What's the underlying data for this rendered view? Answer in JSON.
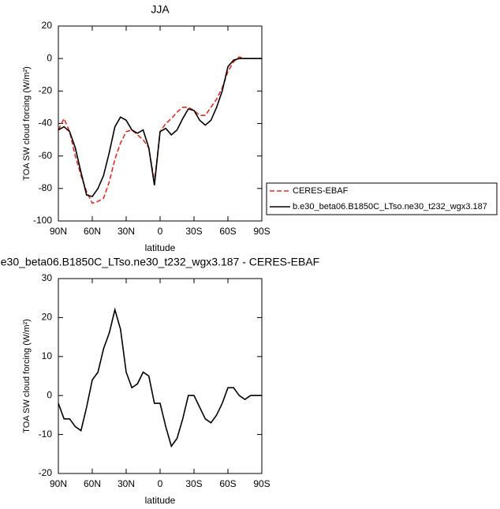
{
  "chart_data": [
    {
      "type": "line",
      "title": "JJA",
      "xlabel": "latitude",
      "ylabel": "TOA SW cloud forcing (W/m²)",
      "x": [
        90,
        85,
        80,
        75,
        70,
        65,
        60,
        55,
        50,
        45,
        40,
        35,
        30,
        25,
        20,
        15,
        10,
        5,
        0,
        -5,
        -10,
        -15,
        -20,
        -25,
        -30,
        -35,
        -40,
        -45,
        -50,
        -55,
        -60,
        -65,
        -70,
        -75,
        -80,
        -85,
        -90
      ],
      "series": [
        {
          "name": "CERES-EBAF",
          "color": "#e8281e",
          "dashed": true,
          "values": [
            -44,
            -37,
            -45,
            -60,
            -72,
            -82,
            -89,
            -88,
            -86,
            -76,
            -62,
            -52,
            -45,
            -44,
            -47,
            -50,
            -55,
            -76,
            -45,
            -40,
            -37,
            -33,
            -30,
            -30,
            -32,
            -35,
            -35,
            -30,
            -25,
            -18,
            -8,
            -2,
            1,
            0,
            0,
            0,
            0
          ]
        },
        {
          "name": "b.e30_beta06.B1850C_LTso.ne30_t232_wgx3.187",
          "color": "#000000",
          "dashed": false,
          "values": [
            -44,
            -42,
            -45,
            -55,
            -70,
            -84,
            -85,
            -80,
            -72,
            -58,
            -42,
            -36,
            -38,
            -44,
            -46,
            -44,
            -55,
            -78,
            -45,
            -43,
            -47,
            -44,
            -37,
            -31,
            -32,
            -38,
            -41,
            -38,
            -30,
            -20,
            -5,
            -1,
            0,
            0,
            0,
            0,
            0
          ]
        }
      ],
      "xlim": [
        90,
        -90
      ],
      "xticks": [
        {
          "value": 90,
          "label": "90N"
        },
        {
          "value": 60,
          "label": "60N"
        },
        {
          "value": 30,
          "label": "30N"
        },
        0,
        {
          "value": -30,
          "label": "30S"
        },
        {
          "value": -60,
          "label": "60S"
        },
        {
          "value": -90,
          "label": "90S"
        }
      ],
      "ylim": [
        -100,
        20
      ],
      "yticks": [
        -100,
        -80,
        -60,
        -40,
        -20,
        0,
        20
      ],
      "legend": "right"
    },
    {
      "type": "line",
      "title": "e30_beta06.B1850C_LTso.ne30_t232_wgx3.187 - CERES-EBAF",
      "xlabel": "latitude",
      "ylabel": "TOA SW cloud forcing (W/m²)",
      "x": [
        90,
        85,
        80,
        75,
        70,
        65,
        60,
        55,
        50,
        45,
        40,
        35,
        30,
        25,
        20,
        15,
        10,
        5,
        0,
        -5,
        -10,
        -15,
        -20,
        -25,
        -30,
        -35,
        -40,
        -45,
        -50,
        -55,
        -60,
        -65,
        -70,
        -75,
        -80,
        -85,
        -90
      ],
      "series": [
        {
          "color": "#000000",
          "dashed": false,
          "values": [
            -2,
            -6,
            -6,
            -8,
            -9,
            -3,
            4,
            6,
            12,
            16,
            22,
            17,
            6,
            2,
            3,
            6,
            5,
            -2,
            -2,
            -8,
            -13,
            -11,
            -6,
            0,
            0,
            -3,
            -6,
            -7,
            -5,
            -2,
            2,
            2,
            0,
            -1,
            0,
            0,
            0
          ]
        }
      ],
      "xlim": [
        90,
        -90
      ],
      "xticks": [
        {
          "value": 90,
          "label": "90N"
        },
        {
          "value": 60,
          "label": "60N"
        },
        {
          "value": 30,
          "label": "30N"
        },
        0,
        {
          "value": -30,
          "label": "30S"
        },
        {
          "value": -60,
          "label": "60S"
        },
        {
          "value": -90,
          "label": "90S"
        }
      ],
      "ylim": [
        -20,
        30
      ],
      "yticks": [
        -20,
        -10,
        0,
        10,
        20,
        30
      ]
    }
  ]
}
